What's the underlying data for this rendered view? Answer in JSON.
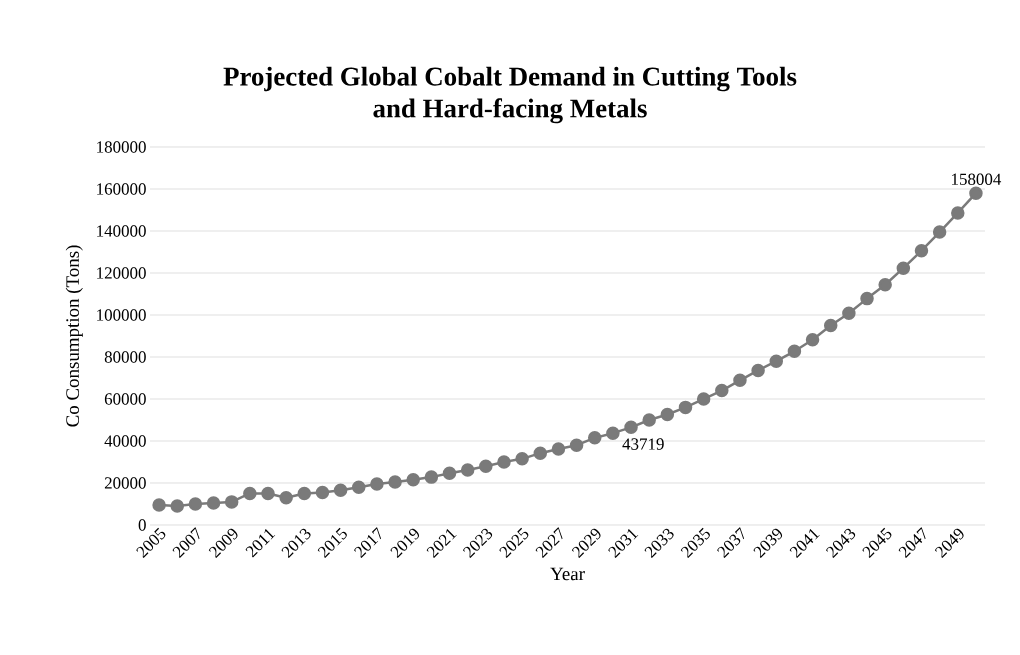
{
  "chart_data": {
    "type": "line",
    "title": "Projected Global Cobalt Demand in Cutting Tools\nand Hard-facing Metals",
    "xlabel": "Year",
    "ylabel": "Co Consumption (Tons)",
    "categories": [
      "2005",
      null,
      "2007",
      null,
      "2009",
      null,
      "2011",
      null,
      "2013",
      null,
      "2015",
      null,
      "2017",
      null,
      "2019",
      null,
      "2021",
      null,
      "2023",
      null,
      "2025",
      null,
      "2027",
      null,
      "2029",
      null,
      "2031",
      null,
      "2033",
      null,
      "2035",
      null,
      "2037",
      null,
      "2039",
      null,
      "2041",
      null,
      "2043",
      null,
      "2045",
      null,
      "2047",
      null,
      "2049",
      null
    ],
    "series": [
      {
        "color": "#7a7a7a",
        "values": [
          9500,
          9000,
          10000,
          10500,
          11000,
          15000,
          15000,
          13000,
          15000,
          15500,
          16500,
          18000,
          19500,
          20500,
          21500,
          22800,
          24600,
          26200,
          28000,
          30000,
          31500,
          34200,
          36200,
          38000,
          41500,
          43719,
          46500,
          50000,
          52600,
          56000,
          60000,
          64000,
          68900,
          73600,
          78000,
          82700,
          88200,
          95000,
          100800,
          107800,
          114400,
          122300,
          130600,
          139500,
          148600,
          158004
        ],
        "value_labels": [
          null,
          null,
          null,
          null,
          null,
          null,
          null,
          null,
          null,
          null,
          null,
          null,
          null,
          null,
          null,
          null,
          null,
          null,
          null,
          null,
          null,
          null,
          null,
          null,
          null,
          "43719",
          null,
          null,
          null,
          null,
          null,
          null,
          null,
          null,
          null,
          null,
          null,
          null,
          null,
          null,
          null,
          null,
          null,
          null,
          null,
          "158004"
        ]
      }
    ],
    "ylim": [
      0,
      180000
    ],
    "yticks": [
      0,
      20000,
      40000,
      60000,
      80000,
      100000,
      120000,
      140000,
      160000,
      180000
    ],
    "grid": "y",
    "marker": "circle",
    "line_style": "solid"
  }
}
